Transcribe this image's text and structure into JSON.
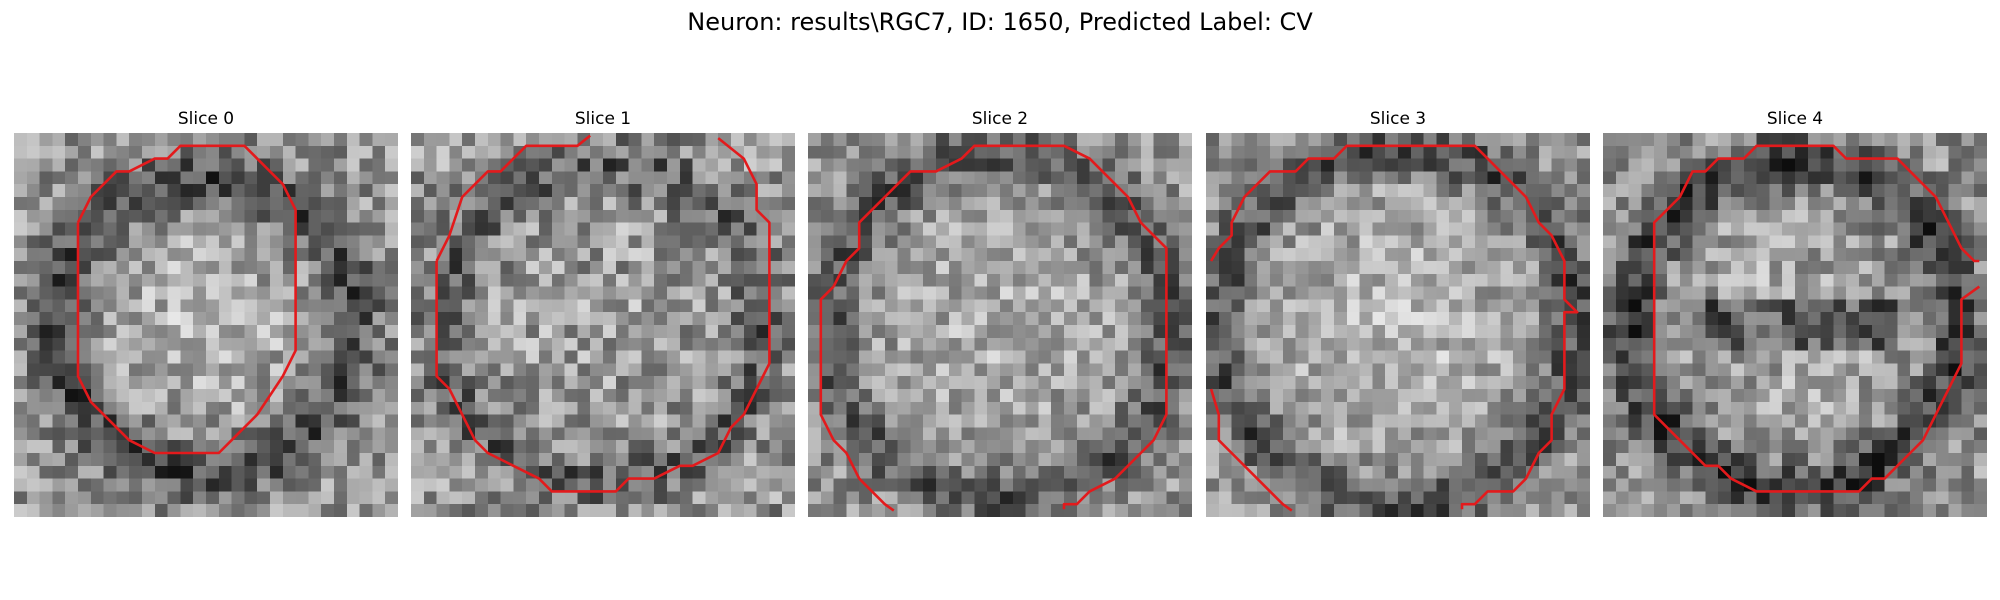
{
  "figure": {
    "title": "Neuron: results\\RGC7, ID: 1650, Predicted Label: CV",
    "colors": {
      "contour": "#e31a1c",
      "background": "#ffffff",
      "colormap": "grayscale"
    },
    "slices": [
      {
        "label": "Slice 0"
      },
      {
        "label": "Slice 1"
      },
      {
        "label": "Slice 2"
      },
      {
        "label": "Slice 3"
      },
      {
        "label": "Slice 4"
      }
    ]
  }
}
